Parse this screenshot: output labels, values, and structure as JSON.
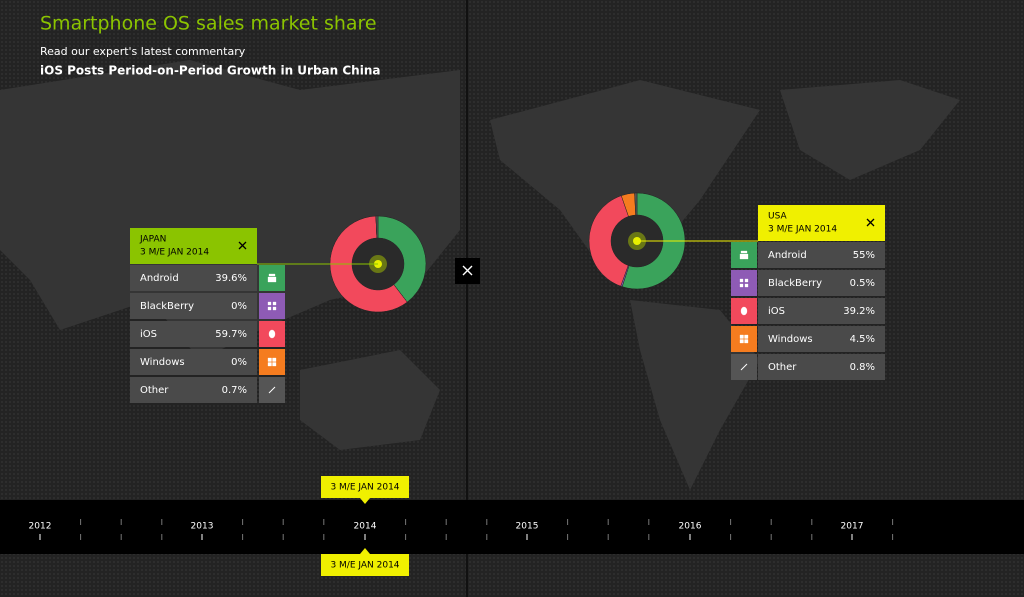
{
  "header": {
    "title": "Smartphone OS sales market share",
    "subtitle": "Read our expert's latest commentary",
    "link": "iOS Posts Period-on-Period Growth in Urban China"
  },
  "panels": [
    {
      "country": "JAPAN",
      "period": "3 M/E JAN 2014",
      "rows": [
        {
          "name": "Android",
          "value": 39.6,
          "value_label": "39.6%",
          "color": "#3aa35b"
        },
        {
          "name": "BlackBerry",
          "value": 0,
          "value_label": "0%",
          "color": "#8e5bb5"
        },
        {
          "name": "iOS",
          "value": 59.7,
          "value_label": "59.7%",
          "color": "#f2495c"
        },
        {
          "name": "Windows",
          "value": 0,
          "value_label": "0%",
          "color": "#f57c1f"
        },
        {
          "name": "Other",
          "value": 0.7,
          "value_label": "0.7%",
          "color": "#555555"
        }
      ]
    },
    {
      "country": "USA",
      "period": "3 M/E JAN 2014",
      "rows": [
        {
          "name": "Android",
          "value": 55,
          "value_label": "55%",
          "color": "#3aa35b"
        },
        {
          "name": "BlackBerry",
          "value": 0.5,
          "value_label": "0.5%",
          "color": "#8e5bb5"
        },
        {
          "name": "iOS",
          "value": 39.2,
          "value_label": "39.2%",
          "color": "#f2495c"
        },
        {
          "name": "Windows",
          "value": 4.5,
          "value_label": "4.5%",
          "color": "#f57c1f"
        },
        {
          "name": "Other",
          "value": 0.8,
          "value_label": "0.8%",
          "color": "#555555"
        }
      ]
    }
  ],
  "timeline": {
    "years": [
      "2012",
      "2013",
      "2014",
      "2015",
      "2016",
      "2017"
    ],
    "selected": "3 M/E JAN 2014"
  }
}
